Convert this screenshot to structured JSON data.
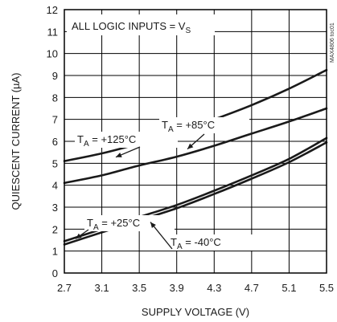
{
  "chart_data": {
    "type": "line",
    "title": "",
    "xlabel": "SUPPLY VOLTAGE (V)",
    "ylabel": "QUIESCENT CURRENT (µA)",
    "xlim": [
      2.7,
      5.5
    ],
    "ylim": [
      0,
      12
    ],
    "xticks": [
      2.7,
      3.1,
      3.5,
      3.9,
      4.3,
      4.7,
      5.1,
      5.5
    ],
    "xtick_labels": [
      "2.7",
      "3.1",
      "3.5",
      "3.9",
      "4.3",
      "4.7",
      "5.1",
      "5.5"
    ],
    "yticks": [
      0,
      1,
      2,
      3,
      4,
      5,
      6,
      7,
      8,
      9,
      10,
      11,
      12
    ],
    "ytick_labels": [
      "0",
      "1",
      "2",
      "3",
      "4",
      "5",
      "6",
      "7",
      "8",
      "9",
      "10",
      "11",
      "12"
    ],
    "grid": true,
    "legend": "none",
    "note": "ALL LOGIC INPUTS = V",
    "note_subscript": "S",
    "figure_code": "MAX4806 toc01",
    "series": [
      {
        "name": "TA = +125°C",
        "label_main": "T",
        "label_sub": "A",
        "label_rest": " = +125°C",
        "x": [
          2.7,
          3.1,
          3.5,
          3.9,
          4.3,
          4.7,
          5.1,
          5.5
        ],
        "y": [
          5.1,
          5.45,
          5.9,
          6.4,
          7.0,
          7.65,
          8.4,
          9.25
        ]
      },
      {
        "name": "TA = +85°C",
        "label_main": "T",
        "label_sub": "A",
        "label_rest": " = +85°C",
        "x": [
          2.7,
          3.1,
          3.5,
          3.9,
          4.3,
          4.7,
          5.1,
          5.5
        ],
        "y": [
          4.1,
          4.45,
          4.9,
          5.3,
          5.8,
          6.35,
          6.9,
          7.5
        ]
      },
      {
        "name": "TA = +25°C",
        "label_main": "T",
        "label_sub": "A",
        "label_rest": " = +25°C",
        "x": [
          2.7,
          3.1,
          3.5,
          3.9,
          4.3,
          4.7,
          5.1,
          5.5
        ],
        "y": [
          1.45,
          2.0,
          2.55,
          3.1,
          3.75,
          4.45,
          5.2,
          6.15
        ]
      },
      {
        "name": "TA = -40°C",
        "label_main": "T",
        "label_sub": "A",
        "label_rest": " = -40°C",
        "x": [
          2.7,
          3.1,
          3.5,
          3.9,
          4.3,
          4.7,
          5.1,
          5.5
        ],
        "y": [
          1.3,
          1.85,
          2.4,
          2.95,
          3.6,
          4.3,
          5.05,
          5.95
        ]
      }
    ]
  }
}
